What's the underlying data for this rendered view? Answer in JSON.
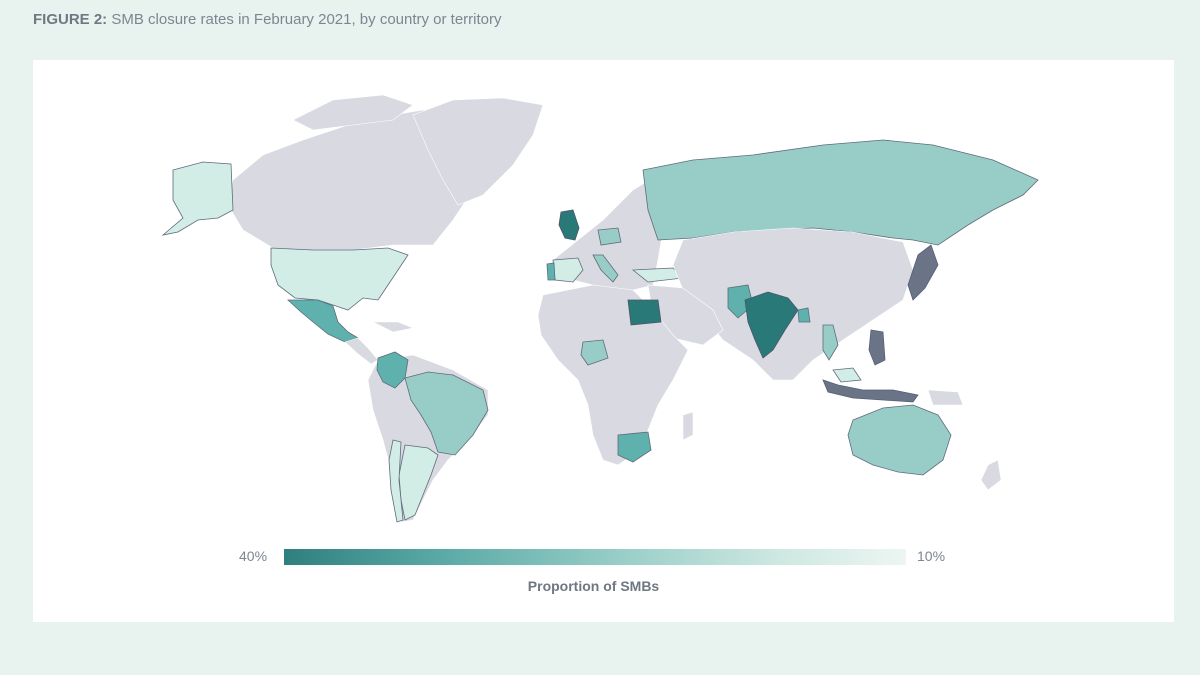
{
  "figure": {
    "label": "FIGURE 2:",
    "title": "SMB closure rates in February 2021, by country or territory"
  },
  "legend": {
    "min_label": "40%",
    "max_label": "10%",
    "title": "Proportion of SMBs",
    "color_high": "#2f7f7f",
    "color_low": "#ecf6f3",
    "no_data_color": "#d8d9e1"
  },
  "map_data": {
    "type": "choropleth",
    "value_range_percent": [
      40,
      10
    ],
    "shaded_regions": [
      {
        "name": "United States",
        "level": "low"
      },
      {
        "name": "Alaska",
        "level": "low"
      },
      {
        "name": "Mexico",
        "level": "medium-high"
      },
      {
        "name": "Colombia",
        "level": "medium-high"
      },
      {
        "name": "Brazil",
        "level": "medium"
      },
      {
        "name": "Argentina",
        "level": "low"
      },
      {
        "name": "Chile",
        "level": "low"
      },
      {
        "name": "United Kingdom",
        "level": "high"
      },
      {
        "name": "Spain",
        "level": "low"
      },
      {
        "name": "Portugal",
        "level": "medium-high"
      },
      {
        "name": "Italy",
        "level": "medium"
      },
      {
        "name": "Poland",
        "level": "medium"
      },
      {
        "name": "Turkey",
        "level": "low"
      },
      {
        "name": "Russia",
        "level": "medium"
      },
      {
        "name": "Egypt",
        "level": "very-high"
      },
      {
        "name": "Nigeria",
        "level": "medium"
      },
      {
        "name": "South Africa",
        "level": "medium-high"
      },
      {
        "name": "India",
        "level": "very-high"
      },
      {
        "name": "Pakistan",
        "level": "medium-high"
      },
      {
        "name": "Bangladesh",
        "level": "medium-high"
      },
      {
        "name": "Vietnam",
        "level": "medium"
      },
      {
        "name": "Philippines",
        "level": "high"
      },
      {
        "name": "Indonesia",
        "level": "high"
      },
      {
        "name": "Malaysia",
        "level": "low"
      },
      {
        "name": "Australia",
        "level": "medium"
      }
    ]
  }
}
